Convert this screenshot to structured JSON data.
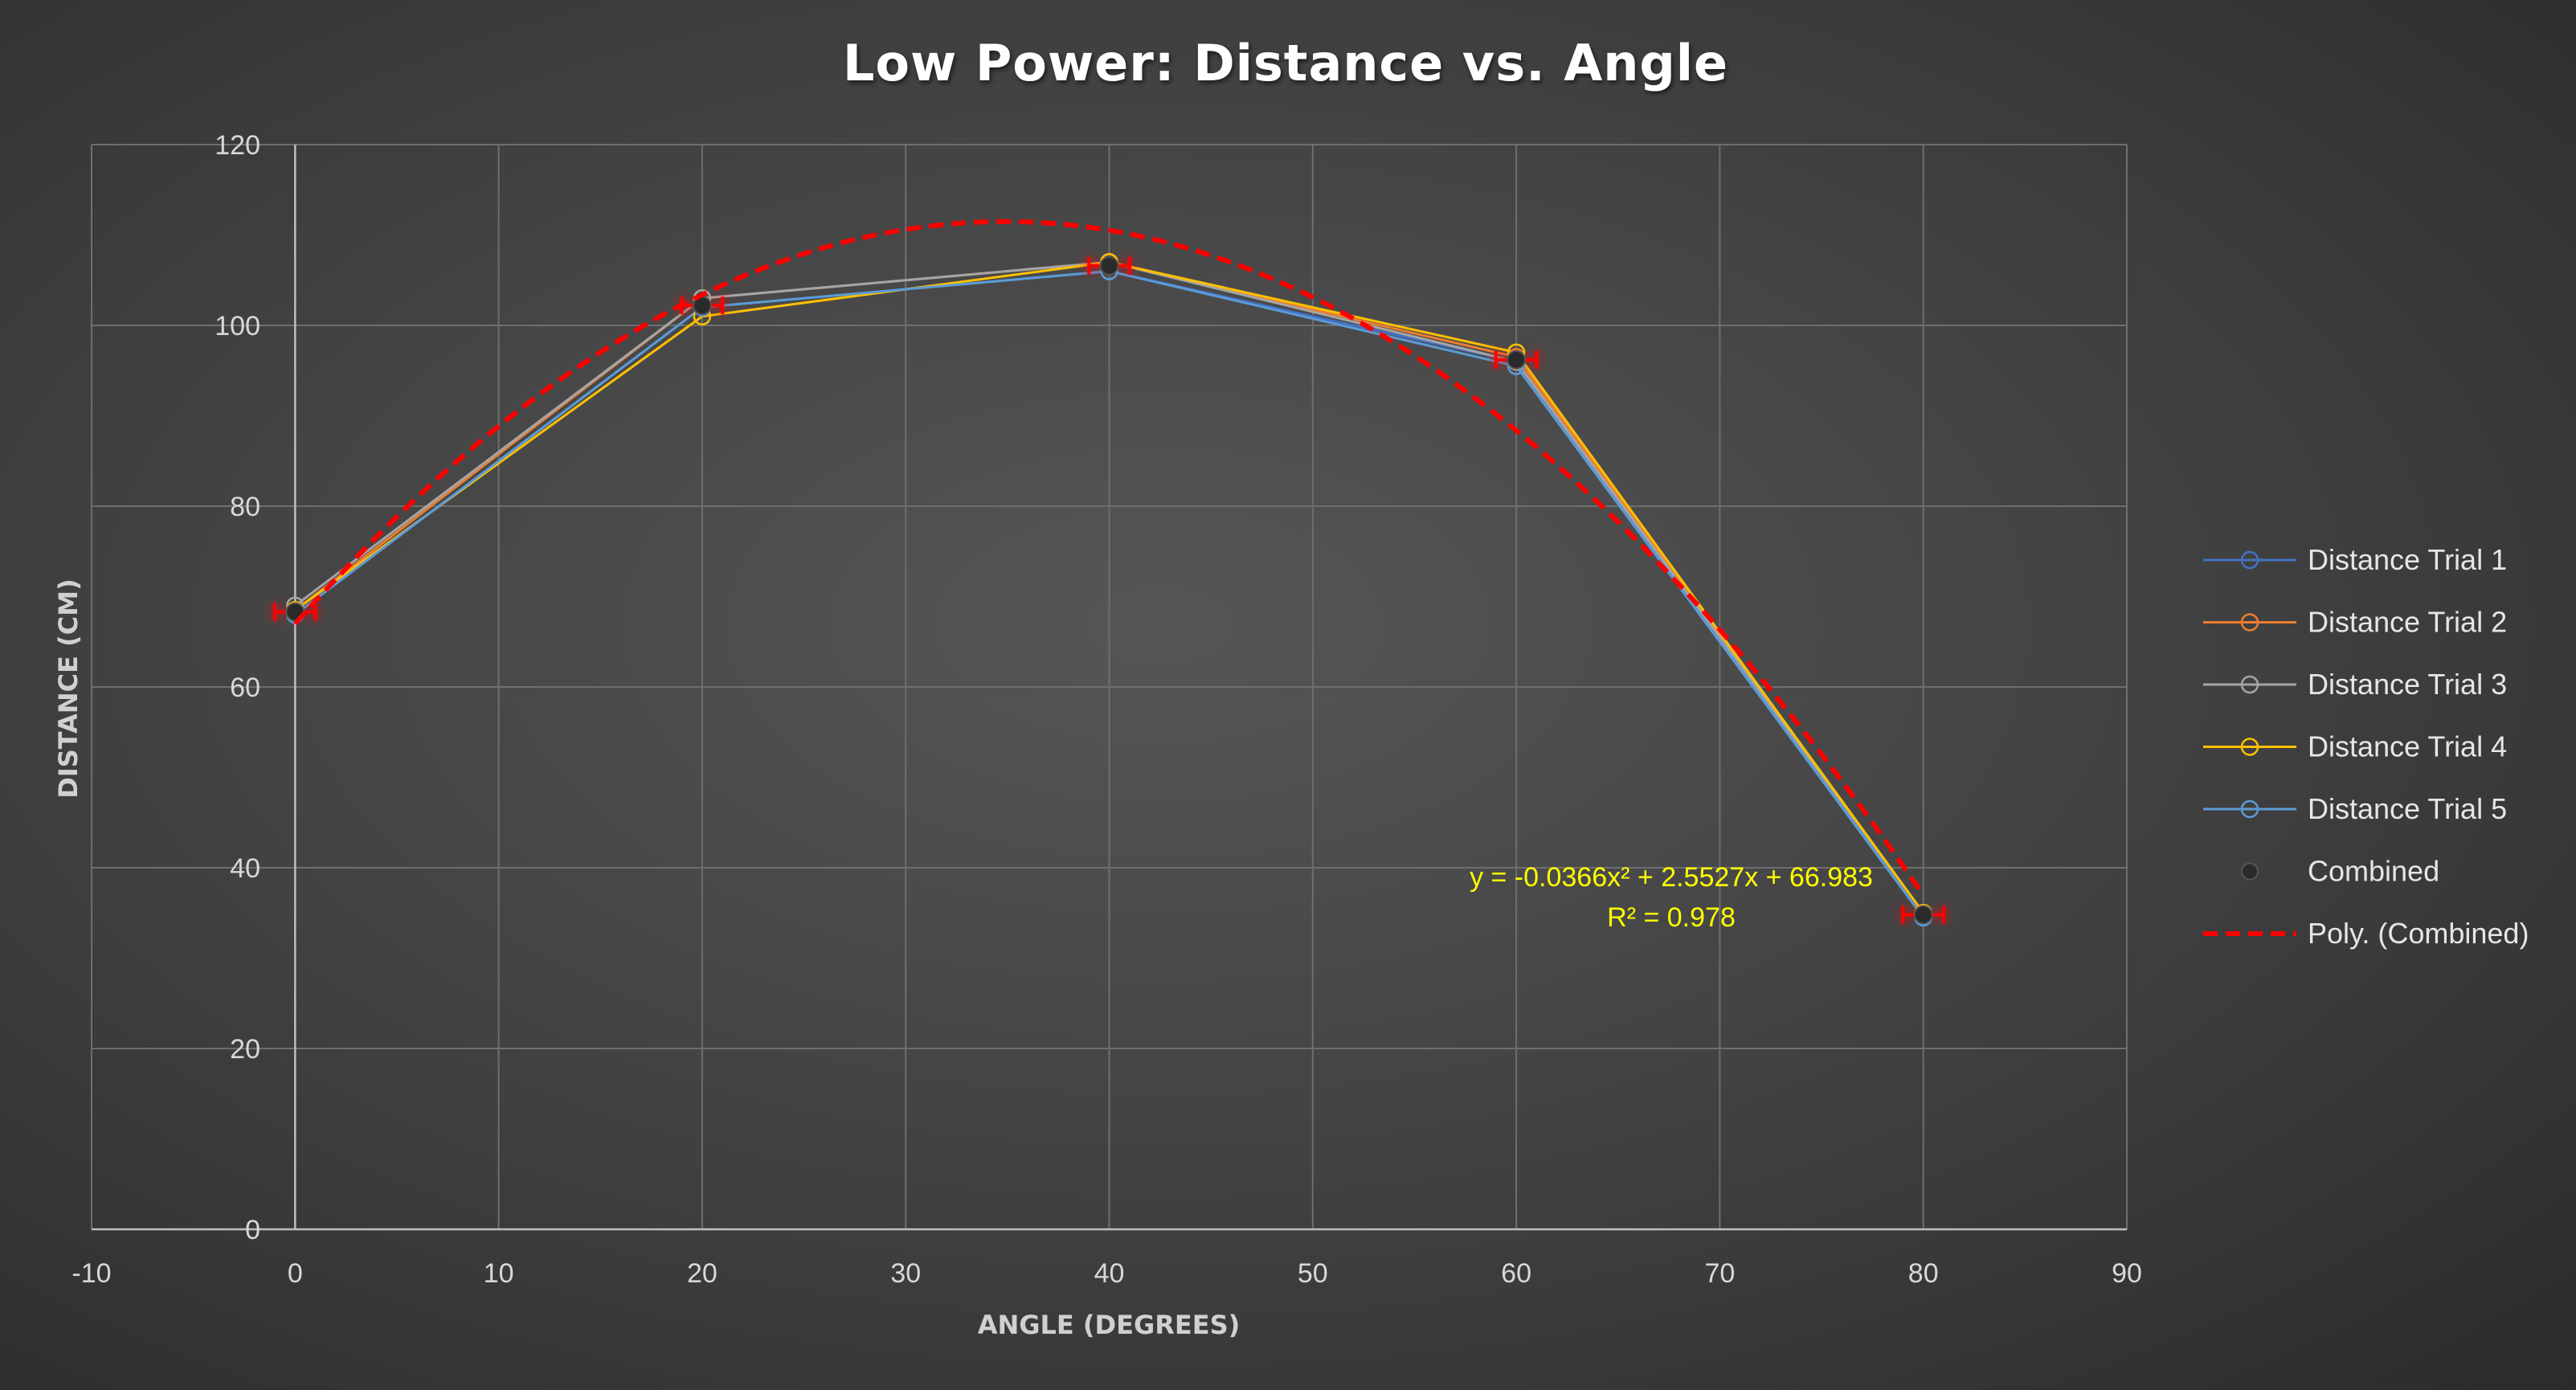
{
  "chart_data": {
    "type": "scatter",
    "title": "Low Power: Distance vs. Angle",
    "xlabel": "ANGLE (DEGREES)",
    "ylabel": "DISTANCE (CM)",
    "xlim": [
      -10,
      90
    ],
    "ylim": [
      0,
      120
    ],
    "xticks": [
      "-10",
      "0",
      "10",
      "20",
      "30",
      "40",
      "50",
      "60",
      "70",
      "80",
      "90"
    ],
    "yticks": [
      "0",
      "20",
      "40",
      "60",
      "80",
      "100",
      "120"
    ],
    "grid": true,
    "legend_position": "right",
    "x": [
      0,
      20,
      40,
      60,
      80
    ],
    "series": [
      {
        "name": "Distance Trial 1",
        "color": "#4472c4",
        "values": [
          68,
          102,
          106,
          96,
          34.5
        ]
      },
      {
        "name": "Distance Trial 2",
        "color": "#ed7d31",
        "values": [
          68.5,
          103,
          107,
          96.5,
          35
        ]
      },
      {
        "name": "Distance Trial 3",
        "color": "#a5a5a5",
        "values": [
          69,
          103,
          107,
          96,
          35
        ]
      },
      {
        "name": "Distance Trial 4",
        "color": "#ffc000",
        "values": [
          68.5,
          101,
          107,
          97,
          35
        ]
      },
      {
        "name": "Distance Trial 5",
        "color": "#5b9bd5",
        "values": [
          68,
          102,
          106,
          95.5,
          34.5
        ]
      },
      {
        "name": "Combined",
        "color": "#1f1f1f",
        "marker_only": true,
        "values": [
          68.3,
          102.2,
          106.6,
          96.2,
          34.8
        ],
        "x_error": 1,
        "y_error": 0.5,
        "error_color": "#ff0000"
      }
    ],
    "trendline": {
      "name": "Poly. (Combined)",
      "type": "polynomial",
      "order": 2,
      "color": "#ff0000",
      "coefficients": {
        "a": -0.0366,
        "b": 2.5527,
        "c": 66.983
      },
      "x_range": [
        0,
        80
      ],
      "equation_label": "y = -0.0366x² + 2.5527x + 66.983",
      "r2_label": "R² = 0.978"
    }
  }
}
